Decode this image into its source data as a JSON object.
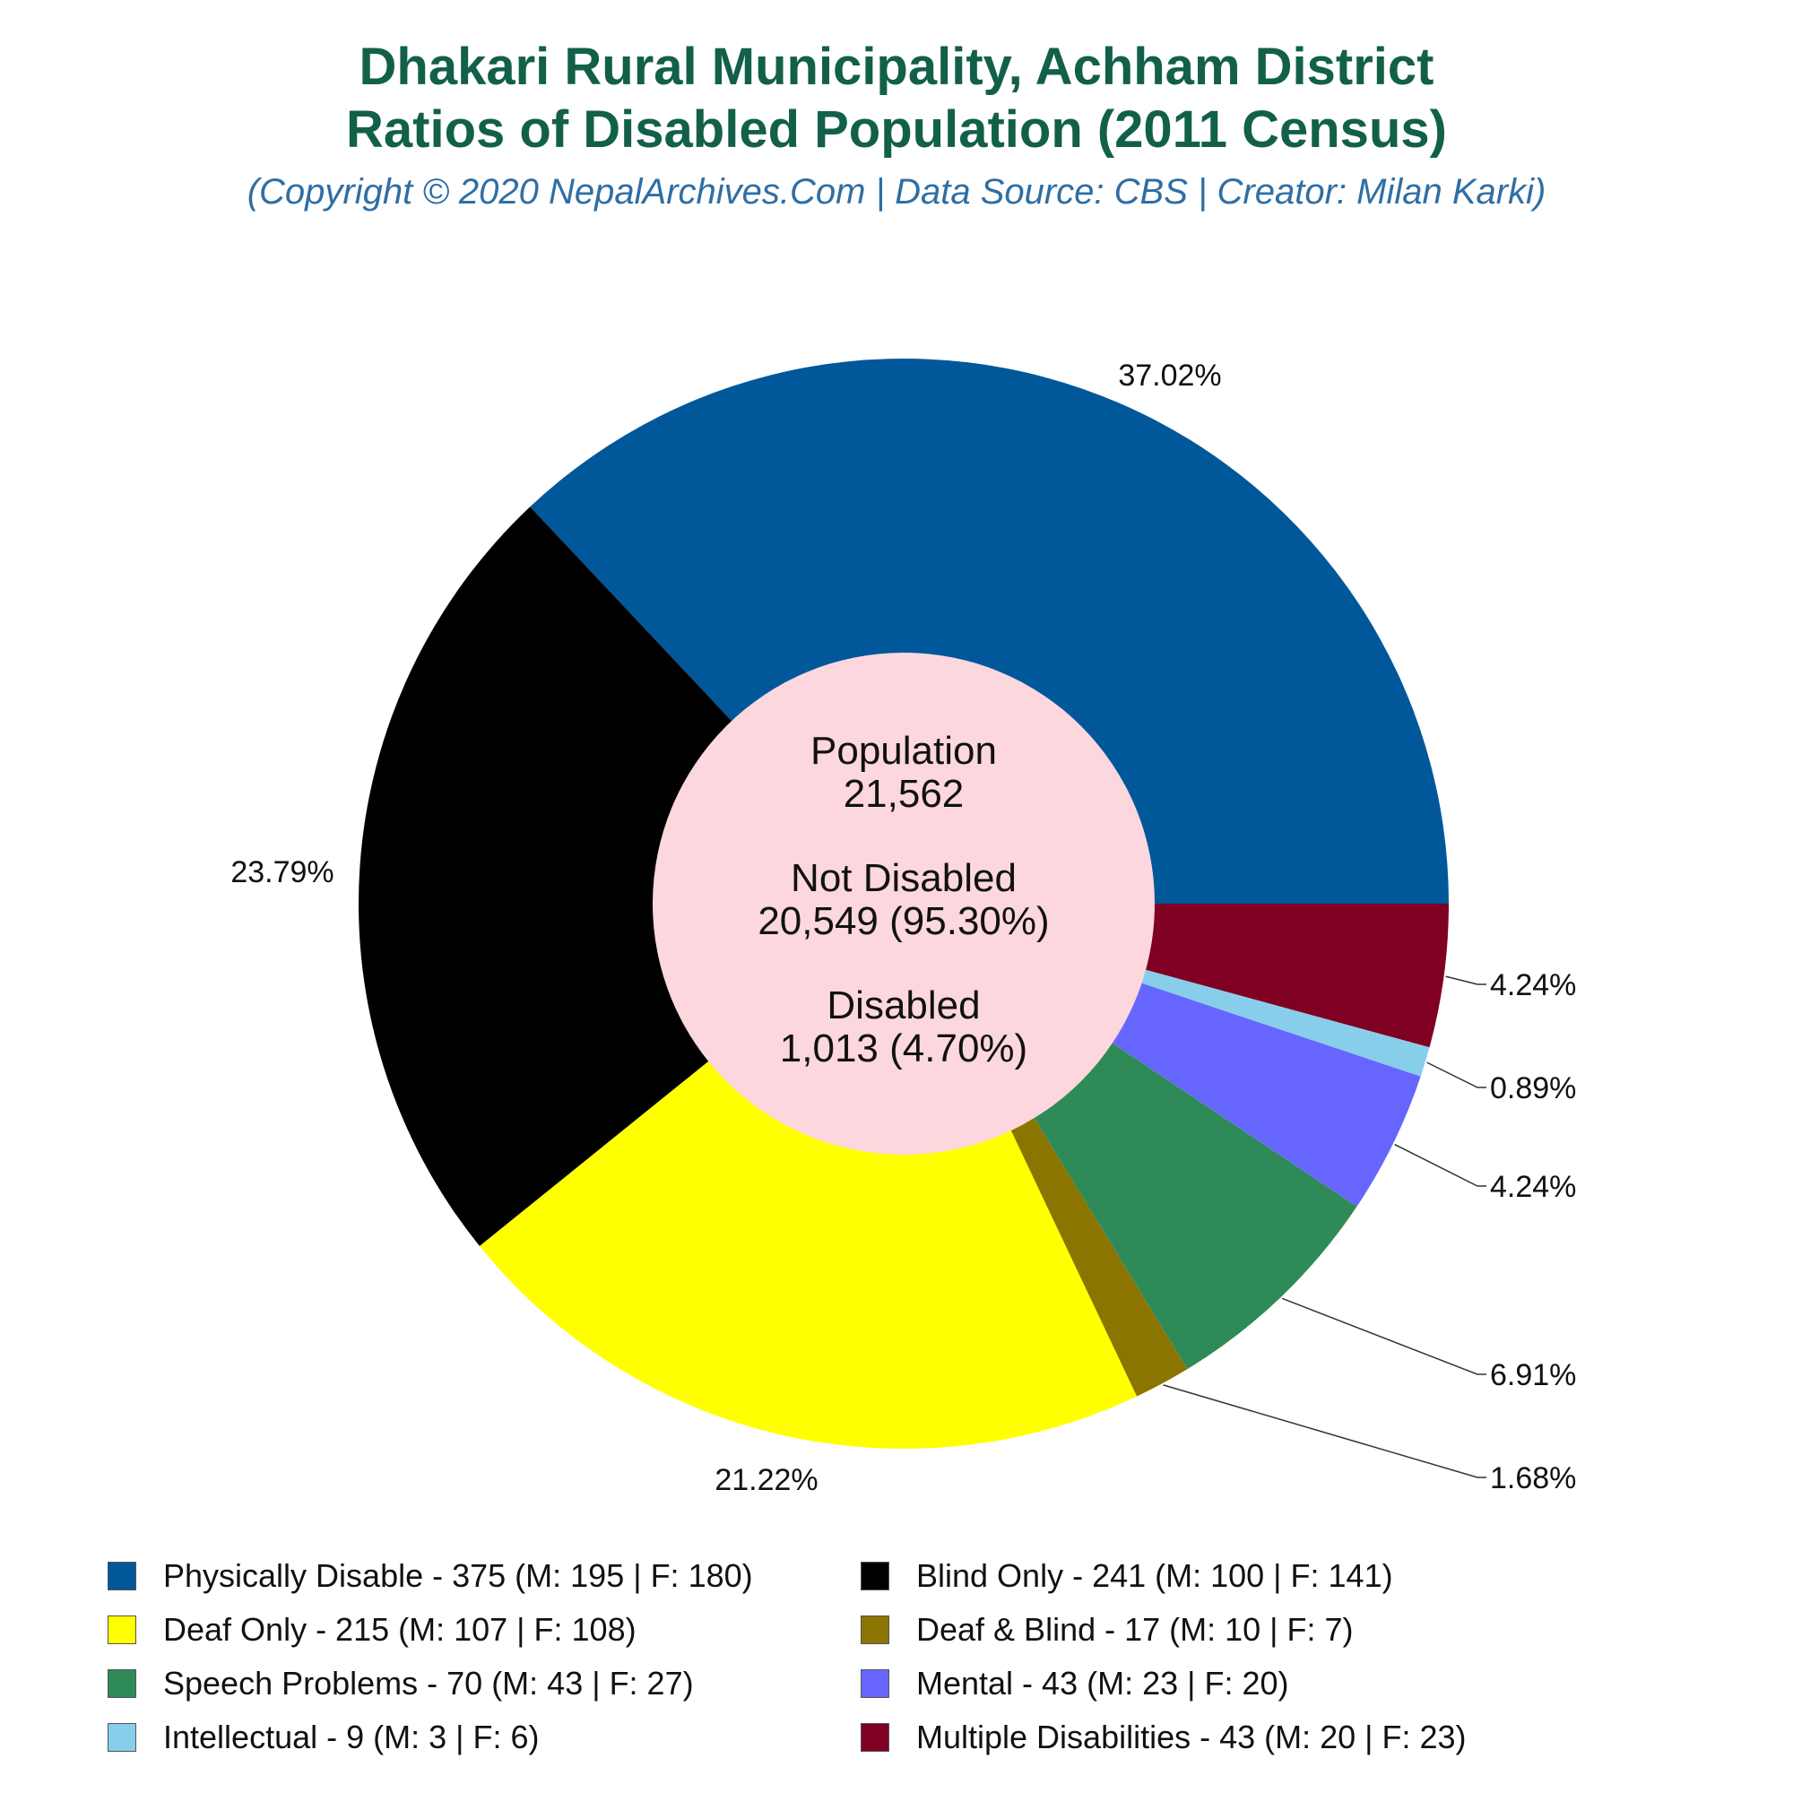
{
  "header": {
    "title_line1": "Dhakari Rural Municipality, Achham District",
    "title_line2": "Ratios of Disabled Population (2011 Census)",
    "subtitle": "(Copyright © 2020 NepalArchives.Com | Data Source: CBS | Creator: Milan Karki)"
  },
  "center": {
    "population_label": "Population",
    "population_value": "21,562",
    "not_disabled_label": "Not Disabled",
    "not_disabled_value": "20,549 (95.30%)",
    "disabled_label": "Disabled",
    "disabled_value": "1,013 (4.70%)"
  },
  "chart_data": {
    "type": "pie",
    "categories": [
      "Physically Disable",
      "Multiple Disabilities",
      "Intellectual",
      "Mental",
      "Speech Problems",
      "Deaf & Blind",
      "Deaf Only",
      "Blind Only"
    ],
    "values": [
      375,
      43,
      9,
      43,
      70,
      17,
      215,
      241
    ],
    "percent_labels": [
      "37.02%",
      "4.24%",
      "0.89%",
      "4.24%",
      "6.91%",
      "1.68%",
      "21.22%",
      "23.79%"
    ],
    "colors": [
      "#00589b",
      "#7f0022",
      "#87ceeb",
      "#6666ff",
      "#2e8b57",
      "#8b7500",
      "#ffff00",
      "#000000"
    ],
    "donut_hole_color": "#fdd7de"
  },
  "legend": {
    "rows": [
      [
        {
          "label": "Physically Disable - 375 (M: 195 | F: 180)",
          "color": "#00589b"
        },
        {
          "label": "Blind Only - 241 (M: 100 | F: 141)",
          "color": "#000000"
        }
      ],
      [
        {
          "label": "Deaf Only - 215 (M: 107 | F: 108)",
          "color": "#ffff00"
        },
        {
          "label": "Deaf & Blind - 17 (M: 10 | F: 7)",
          "color": "#8b7500"
        }
      ],
      [
        {
          "label": "Speech Problems - 70 (M: 43 | F: 27)",
          "color": "#2e8b57"
        },
        {
          "label": "Mental - 43 (M: 23 | F: 20)",
          "color": "#6666ff"
        }
      ],
      [
        {
          "label": "Intellectual - 9 (M: 3 | F: 6)",
          "color": "#87ceeb"
        },
        {
          "label": "Multiple Disabilities - 43 (M: 20 | F: 23)",
          "color": "#7f0022"
        }
      ]
    ]
  }
}
